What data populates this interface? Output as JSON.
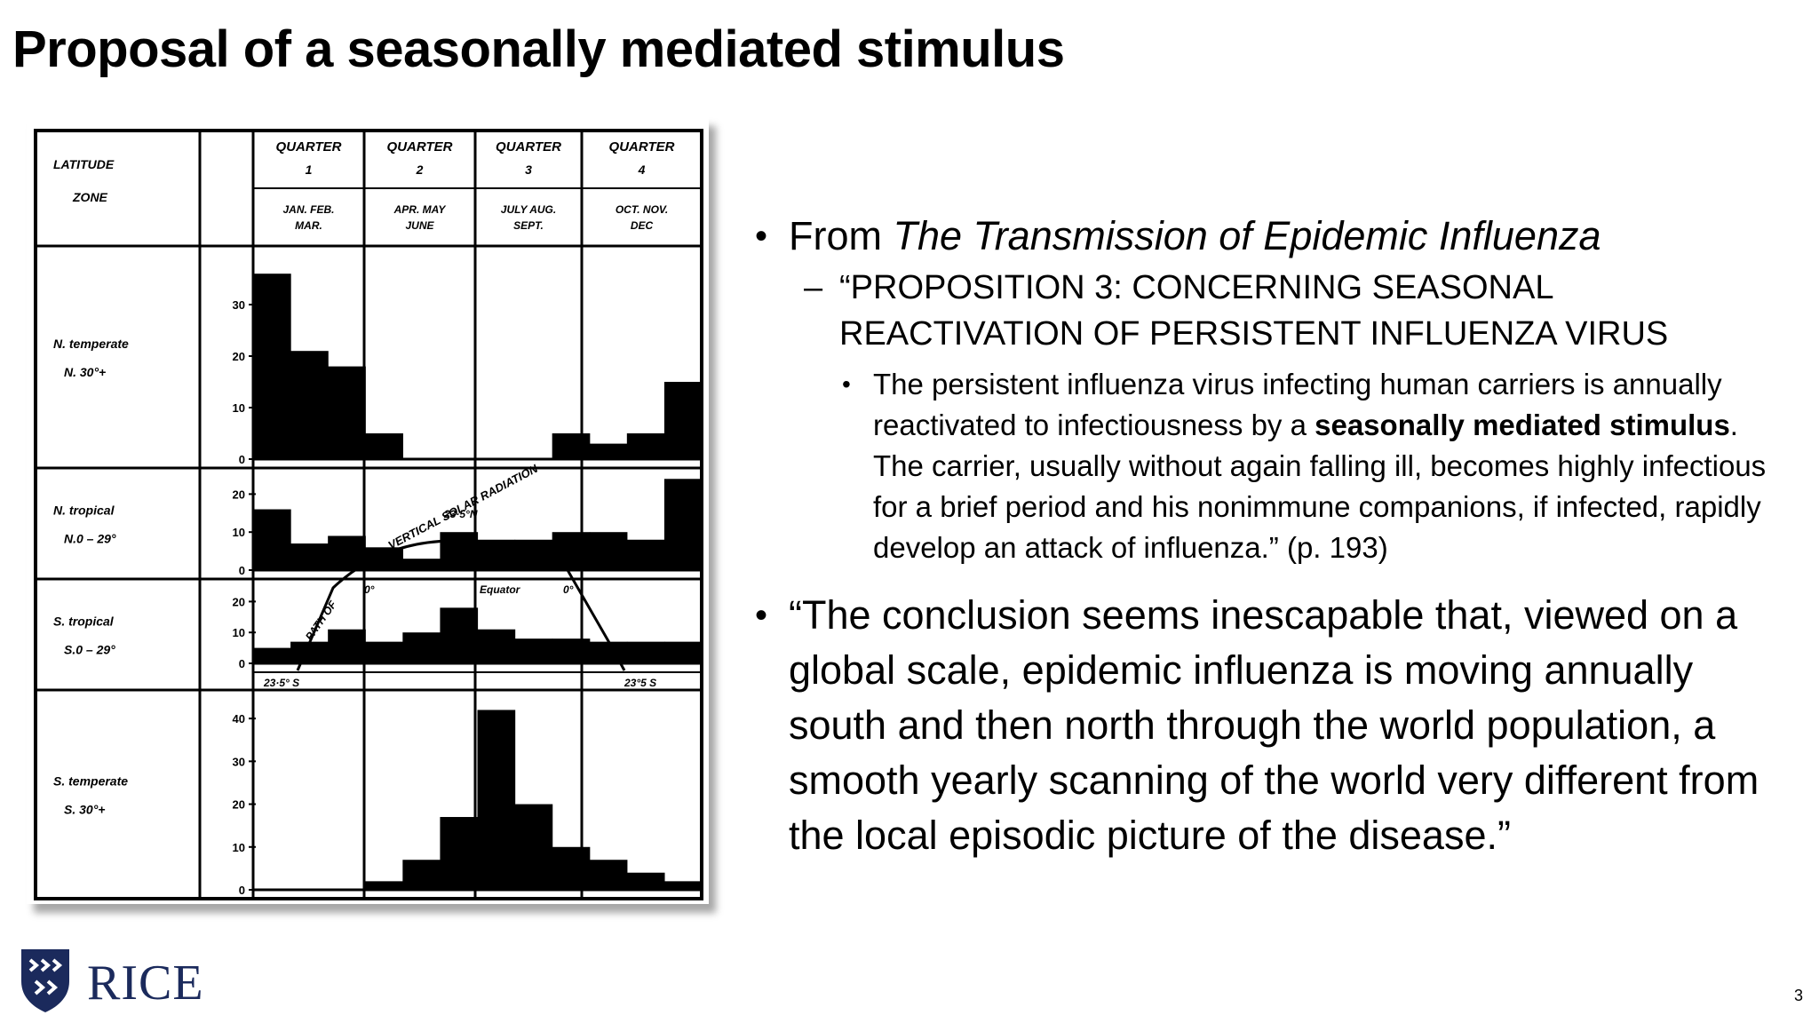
{
  "slide": {
    "title": "Proposal of a seasonally mediated stimulus",
    "page_number": "3",
    "logo_text": "RICE"
  },
  "figure": {
    "header_col1_line1": "LATITUDE",
    "header_col1_line2": "ZONE",
    "quarters": [
      {
        "label": "QUARTER",
        "num": "1",
        "months_line1": "JAN.  FEB.",
        "months_line2": "MAR."
      },
      {
        "label": "QUARTER",
        "num": "2",
        "months_line1": "APR.  MAY",
        "months_line2": "JUNE"
      },
      {
        "label": "QUARTER",
        "num": "3",
        "months_line1": "JULY  AUG.",
        "months_line2": "SEPT."
      },
      {
        "label": "QUARTER",
        "num": "4",
        "months_line1": "OCT.  NOV.",
        "months_line2": "DEC"
      }
    ],
    "zones": [
      {
        "name": "N. temperate",
        "range": "N. 30°+",
        "ticks": [
          "30",
          "20",
          "10",
          "0"
        ],
        "values": [
          36,
          21,
          18,
          5,
          0,
          0,
          0,
          0,
          5,
          3,
          5,
          15
        ]
      },
      {
        "name": "N. tropical",
        "range": "N.0 – 29°",
        "ticks": [
          "20",
          "10",
          "0"
        ],
        "values": [
          16,
          7,
          9,
          6,
          3,
          10,
          8,
          8,
          10,
          10,
          8,
          24
        ]
      },
      {
        "name": "S. tropical",
        "range": "S.0 – 29°",
        "ticks": [
          "20",
          "10",
          "0"
        ],
        "values": [
          5,
          7,
          11,
          7,
          10,
          18,
          11,
          8,
          8,
          7,
          7,
          7
        ]
      },
      {
        "name": "S. temperate",
        "range": "S. 30°+",
        "ticks": [
          "40",
          "30",
          "20",
          "10",
          "0"
        ],
        "values": [
          0,
          0,
          0,
          2,
          7,
          17,
          42,
          20,
          10,
          7,
          4,
          2
        ]
      }
    ],
    "annotations": {
      "vertical_solar_radiation": "VERTICAL SOLAR RADIATION",
      "lat_235n": "23·5°N",
      "path_of": "PATH OF",
      "zero_left": "0°",
      "equator": "Equator",
      "zero_right": "0°",
      "lat_235s_left": "23·5° S",
      "lat_235s_right": "23°5 S"
    }
  },
  "bullets": {
    "b1_prefix": "From ",
    "b1_italic": "The Transmission of Epidemic Influenza",
    "sub1": "“PROPOSITION 3: CONCERNING SEASONAL REACTIVATION OF PERSISTENT INFLUENZA VIRUS",
    "sub2_a": "The persistent influenza virus infecting human carriers is annually reactivated to infectiousness by a ",
    "sub2_bold": "seasonally mediated stimulus",
    "sub2_b": ". The carrier, usually without again falling ill, becomes highly infectious for a brief period and his nonimmune companions, if infected, rapidly develop an attack of influenza.” (p. 193)",
    "b2": "“The conclusion seems inescapable that, viewed on a global scale, epidemic influenza is moving annually south and then north through the world population, a smooth yearly scanning of the world very different from the local episodic picture of the disease.”"
  }
}
